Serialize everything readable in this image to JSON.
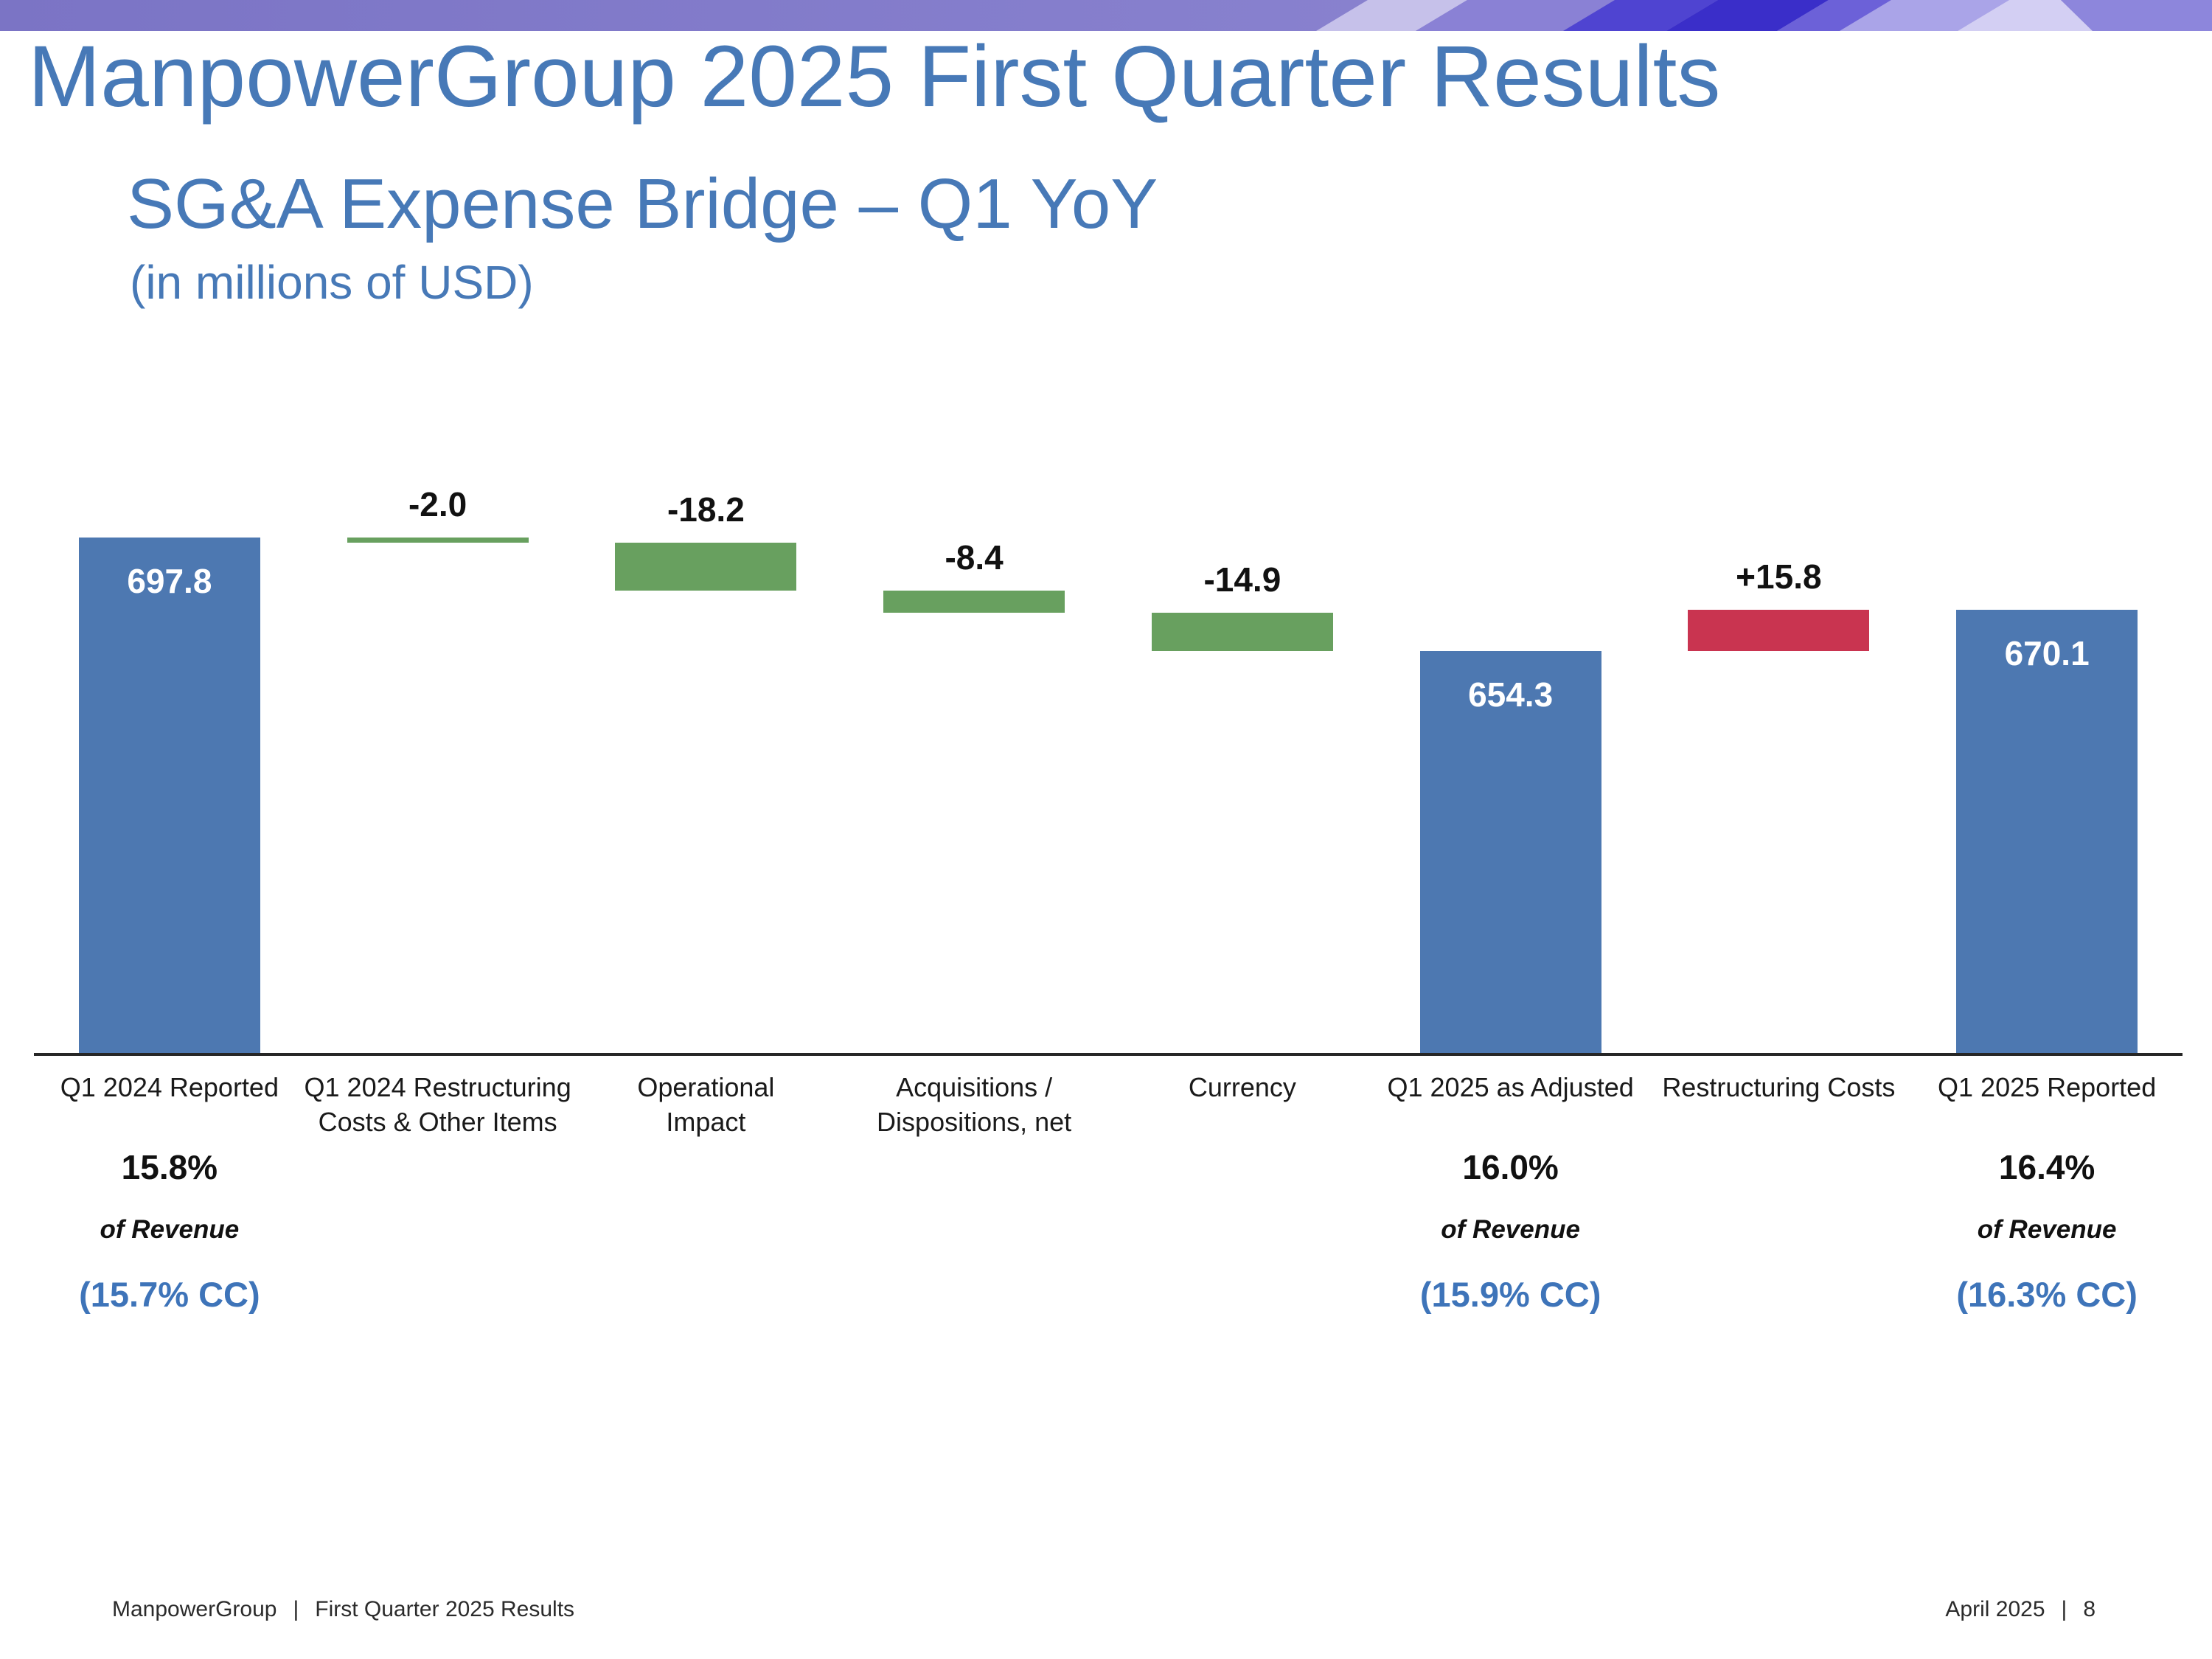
{
  "slide": {
    "title": "ManpowerGroup 2025 First Quarter Results",
    "subtitle": "SG&A Expense Bridge – Q1 YoY",
    "unit_note": "(in millions of USD)",
    "heading_color": "#4779b7",
    "cc_color": "#3e74b9",
    "footer_left": {
      "brand": "ManpowerGroup",
      "separator": "|",
      "text": "First Quarter 2025 Results"
    },
    "footer_right": {
      "date": "April 2025",
      "separator": "|",
      "page": "8"
    }
  },
  "banner": {
    "base_left": "#7b74c5",
    "base_right": "#9089d4",
    "shapes": [
      {
        "color": "#c6c1ea"
      },
      {
        "color": "#8a81d5"
      },
      {
        "color": "#4f44d1"
      },
      {
        "color": "#3a2ec9"
      },
      {
        "color": "#6c61d8"
      },
      {
        "color": "#aaa4e8"
      },
      {
        "color": "#d3cff3"
      },
      {
        "color": "#8d86dc"
      }
    ]
  },
  "chart_data": {
    "type": "waterfall",
    "title": "SG&A Expense Bridge – Q1 YoY",
    "unit": "millions of USD",
    "ylim": [
      500,
      710
    ],
    "grid": false,
    "legend": false,
    "colors": {
      "total": "#4d78b1",
      "decrease": "#68a05f",
      "increase": "#c93450"
    },
    "columns": [
      {
        "category_lines": [
          "Q1 2024 Reported"
        ],
        "kind": "total",
        "value": 697.8,
        "label": "697.8",
        "annotation": {
          "pct": "15.8%",
          "of_label": "of Revenue",
          "cc": "(15.7% CC)"
        }
      },
      {
        "category_lines": [
          "Q1 2024 Restructuring",
          "Costs & Other Items"
        ],
        "kind": "delta",
        "value": -2.0,
        "label": "-2.0"
      },
      {
        "category_lines": [
          "Operational",
          "Impact"
        ],
        "kind": "delta",
        "value": -18.2,
        "label": "-18.2"
      },
      {
        "category_lines": [
          "Acquisitions /",
          "Dispositions, net"
        ],
        "kind": "delta",
        "value": -8.4,
        "label": "-8.4"
      },
      {
        "category_lines": [
          "Currency"
        ],
        "kind": "delta",
        "value": -14.9,
        "label": "-14.9"
      },
      {
        "category_lines": [
          "Q1 2025 as Adjusted"
        ],
        "kind": "total",
        "value": 654.3,
        "label": "654.3",
        "annotation": {
          "pct": "16.0%",
          "of_label": "of Revenue",
          "cc": "(15.9% CC)"
        }
      },
      {
        "category_lines": [
          "Restructuring Costs"
        ],
        "kind": "delta",
        "value": 15.8,
        "label": "+15.8"
      },
      {
        "category_lines": [
          "Q1 2025 Reported"
        ],
        "kind": "total",
        "value": 670.1,
        "label": "670.1",
        "annotation": {
          "pct": "16.4%",
          "of_label": "of Revenue",
          "cc": "(16.3% CC)"
        }
      }
    ]
  }
}
